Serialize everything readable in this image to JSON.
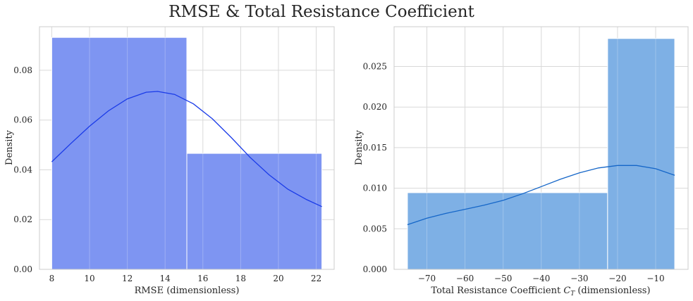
{
  "figure": {
    "title": "RMSE & Total Resistance Coefficient"
  },
  "chart_data": [
    {
      "type": "bar",
      "subtype": "histogram-with-kde",
      "title": "",
      "xlabel": "RMSE (dimensionless)",
      "ylabel": "Density",
      "xlim": [
        7.35,
        22.95
      ],
      "ylim": [
        0,
        0.0975
      ],
      "xticks": [
        8,
        10,
        12,
        14,
        16,
        18,
        20,
        22
      ],
      "yticks": [
        0.0,
        0.02,
        0.04,
        0.06,
        0.08
      ],
      "ytick_labels": [
        "0.00",
        "0.02",
        "0.04",
        "0.06",
        "0.08"
      ],
      "bins": [
        {
          "x0": 8.0,
          "x1": 15.15,
          "density": 0.0932
        },
        {
          "x0": 15.15,
          "x1": 22.3,
          "density": 0.0466
        }
      ],
      "kde": {
        "x": [
          8.0,
          9.0,
          10.0,
          11.0,
          12.0,
          13.0,
          13.6,
          14.5,
          15.5,
          16.5,
          17.5,
          18.5,
          19.5,
          20.5,
          21.5,
          22.3
        ],
        "y": [
          0.0432,
          0.0505,
          0.0575,
          0.0637,
          0.0685,
          0.0712,
          0.0715,
          0.0703,
          0.0665,
          0.0605,
          0.053,
          0.045,
          0.038,
          0.0322,
          0.028,
          0.0252
        ]
      },
      "bar_color": "#7e95f2",
      "kde_color": "#1a3be8",
      "grid": true
    },
    {
      "type": "bar",
      "subtype": "histogram-with-kde",
      "title": "",
      "xlabel": "Total Resistance Coefficient",
      "xlabel_symbol": "C",
      "xlabel_subscript": "T",
      "xlabel_suffix": "(dimensionless)",
      "ylabel": "Density",
      "xlim": [
        -78.6,
        -1.5
      ],
      "ylim": [
        0,
        0.0299
      ],
      "xticks": [
        -70,
        -60,
        -50,
        -40,
        -30,
        -20,
        -10
      ],
      "xtick_labels": [
        "−70",
        "−60",
        "−50",
        "−40",
        "−30",
        "−20",
        "−10"
      ],
      "yticks": [
        0.0,
        0.005,
        0.01,
        0.015,
        0.02,
        0.025
      ],
      "ytick_labels": [
        "0.000",
        "0.005",
        "0.010",
        "0.015",
        "0.020",
        "0.025"
      ],
      "bins": [
        {
          "x0": -75.1,
          "x1": -22.6,
          "density": 0.00945
        },
        {
          "x0": -22.6,
          "x1": -5.0,
          "density": 0.02845
        }
      ],
      "kde": {
        "x": [
          -75.1,
          -70,
          -65,
          -60,
          -55,
          -50,
          -45,
          -40,
          -35,
          -30,
          -25,
          -20,
          -15,
          -10,
          -5.0
        ],
        "y": [
          0.0055,
          0.0063,
          0.0069,
          0.0074,
          0.0079,
          0.0085,
          0.0093,
          0.0102,
          0.0111,
          0.0119,
          0.0125,
          0.0128,
          0.0128,
          0.0124,
          0.0116
        ]
      },
      "bar_color": "#7eb0e5",
      "kde_color": "#1566c8",
      "grid": true
    }
  ]
}
